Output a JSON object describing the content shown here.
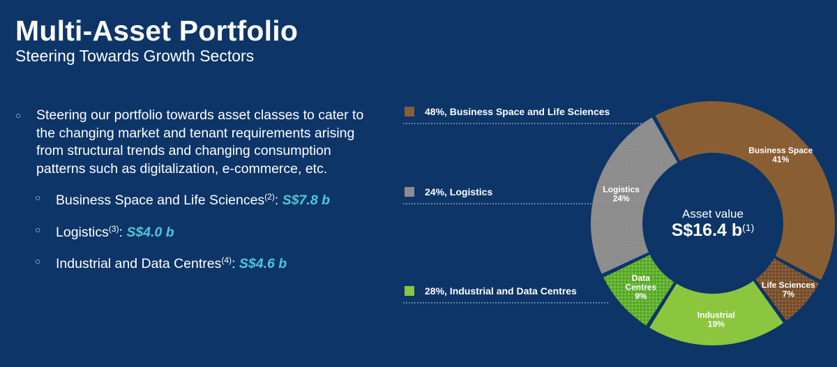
{
  "header": {
    "title": "Multi-Asset Portfolio",
    "subtitle": "Steering Towards Growth Sectors"
  },
  "body": {
    "main_bullet": "Steering our portfolio towards asset classes to cater to the changing market and tenant requirements arising from structural trends and changing consumption patterns such as digitalization, e-commerce, etc.",
    "sub_items": [
      {
        "label": "Business Space and Life Sciences",
        "note": "(2)",
        "sep": ":",
        "value": "S$7.8 b"
      },
      {
        "label": "Logistics",
        "note": "(3)",
        "sep": ":",
        "value": "S$4.0 b"
      },
      {
        "label": "Industrial and Data Centres",
        "note": "(4)",
        "sep": ":",
        "value": "S$4.6 b"
      }
    ]
  },
  "colors": {
    "background": "#0d3568",
    "accent_value": "#4fc6d6",
    "business_space": "#8a5e33",
    "life_sciences": "#7a5230",
    "logistics": "#8c8c8c",
    "industrial": "#8cc63f",
    "data_centres": "#5fae2e"
  },
  "chart_data": {
    "type": "pie",
    "center_label": "Asset value",
    "center_value": "S$16.4 b",
    "center_note": "(1)",
    "slices": [
      {
        "name": "Business Space",
        "value": 41,
        "label": "41%",
        "color": "#8a5e33",
        "pattern": "none"
      },
      {
        "name": "Life Sciences",
        "value": 7,
        "label": "7%",
        "color": "#7a5230",
        "pattern": "dots"
      },
      {
        "name": "Industrial",
        "value": 19,
        "label": "19%",
        "color": "#8cc63f",
        "pattern": "none"
      },
      {
        "name": "Data Centres",
        "value": 9,
        "label": "9%",
        "color": "#5fae2e",
        "pattern": "dots"
      },
      {
        "name": "Logistics",
        "value": 24,
        "label": "24%",
        "color": "#8c8c8c",
        "pattern": "dots"
      }
    ],
    "legend": [
      {
        "text": "48%, Business Space and Life Sciences",
        "color": "#8a5e33"
      },
      {
        "text": "24%, Logistics",
        "color": "#8c8c8c"
      },
      {
        "text": "28%, Industrial and Data Centres",
        "color": "#8cc63f"
      }
    ]
  }
}
